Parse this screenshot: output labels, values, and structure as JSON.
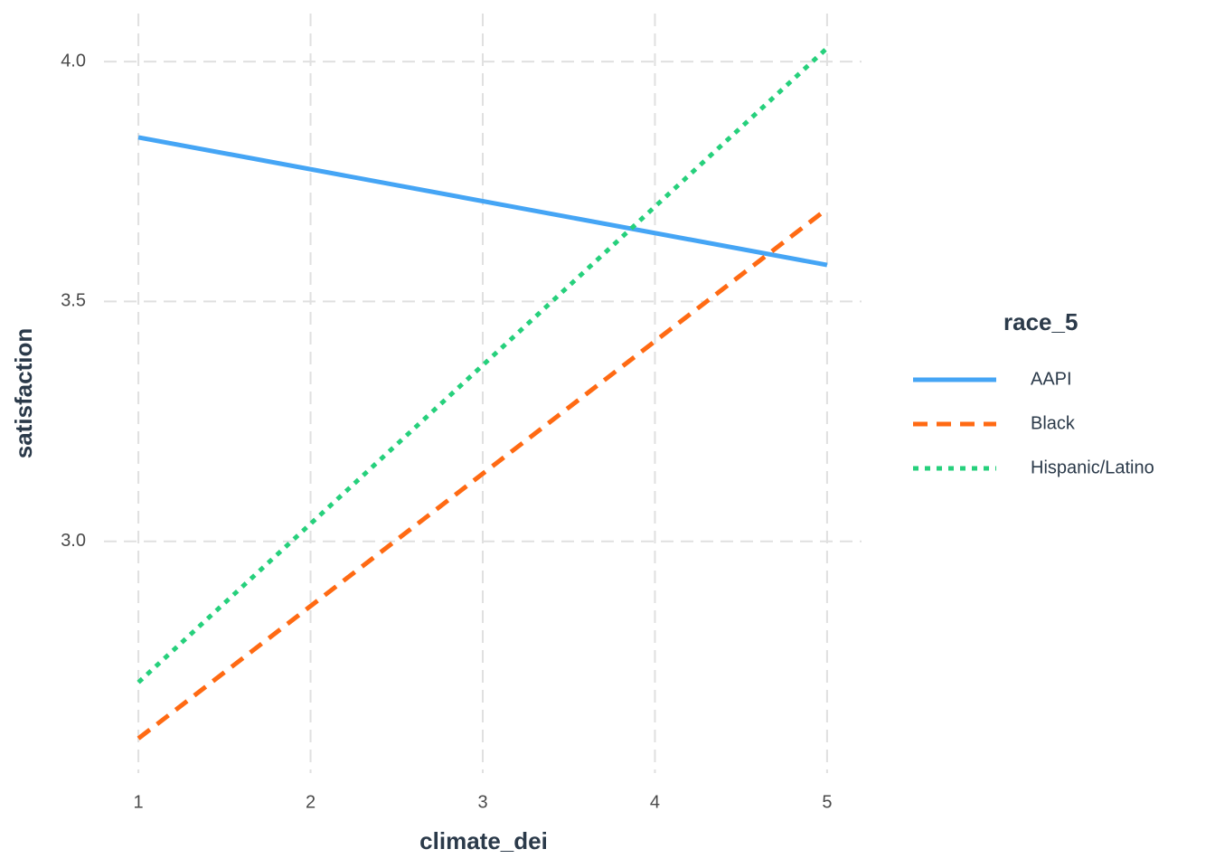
{
  "chart_data": {
    "type": "line",
    "x_label": "climate_dei",
    "y_label": "satisfaction",
    "x": [
      1,
      5
    ],
    "series": [
      {
        "name": "AAPI",
        "color": "#45a5f5",
        "linetype": "solid",
        "values": [
          3.842,
          3.576
        ]
      },
      {
        "name": "Black",
        "color": "#ff6a13",
        "linetype": "dashed",
        "values": [
          2.589,
          3.693
        ]
      },
      {
        "name": "Hispanic/Latino",
        "color": "#26d07c",
        "linetype": "dotted",
        "values": [
          2.706,
          4.028
        ]
      }
    ],
    "legend_title": "race_5",
    "legend_position": "right",
    "xlim": [
      0.8,
      5.2
    ],
    "xticks": [
      1,
      2,
      3,
      4,
      5
    ],
    "ylim": [
      2.517,
      4.1
    ],
    "yticks": [
      {
        "value": 3,
        "label": "3.0"
      },
      3.5,
      {
        "value": 4,
        "label": "4.0"
      }
    ],
    "grid": true
  }
}
